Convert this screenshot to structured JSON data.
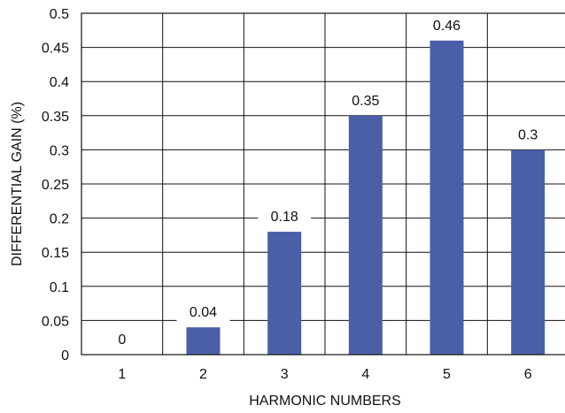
{
  "chart_data": {
    "type": "bar",
    "categories": [
      "1",
      "2",
      "3",
      "4",
      "5",
      "6"
    ],
    "values": [
      0,
      0.04,
      0.18,
      0.35,
      0.46,
      0.3
    ],
    "data_labels": [
      "0",
      "0.04",
      "0.18",
      "0.35",
      "0.46",
      "0.3"
    ],
    "yticks": [
      "0",
      "0.05",
      "0.1",
      "0.15",
      "0.2",
      "0.25",
      "0.3",
      "0.35",
      "0.4",
      "0.45",
      "0.5"
    ],
    "ylim": [
      0,
      0.5
    ],
    "xlabel": "HARMONIC NUMBERS",
    "ylabel": "DIFFERENTIAL GAIN (%)",
    "grid": true,
    "bar_color": "#4a5fa8",
    "legend": "none"
  }
}
